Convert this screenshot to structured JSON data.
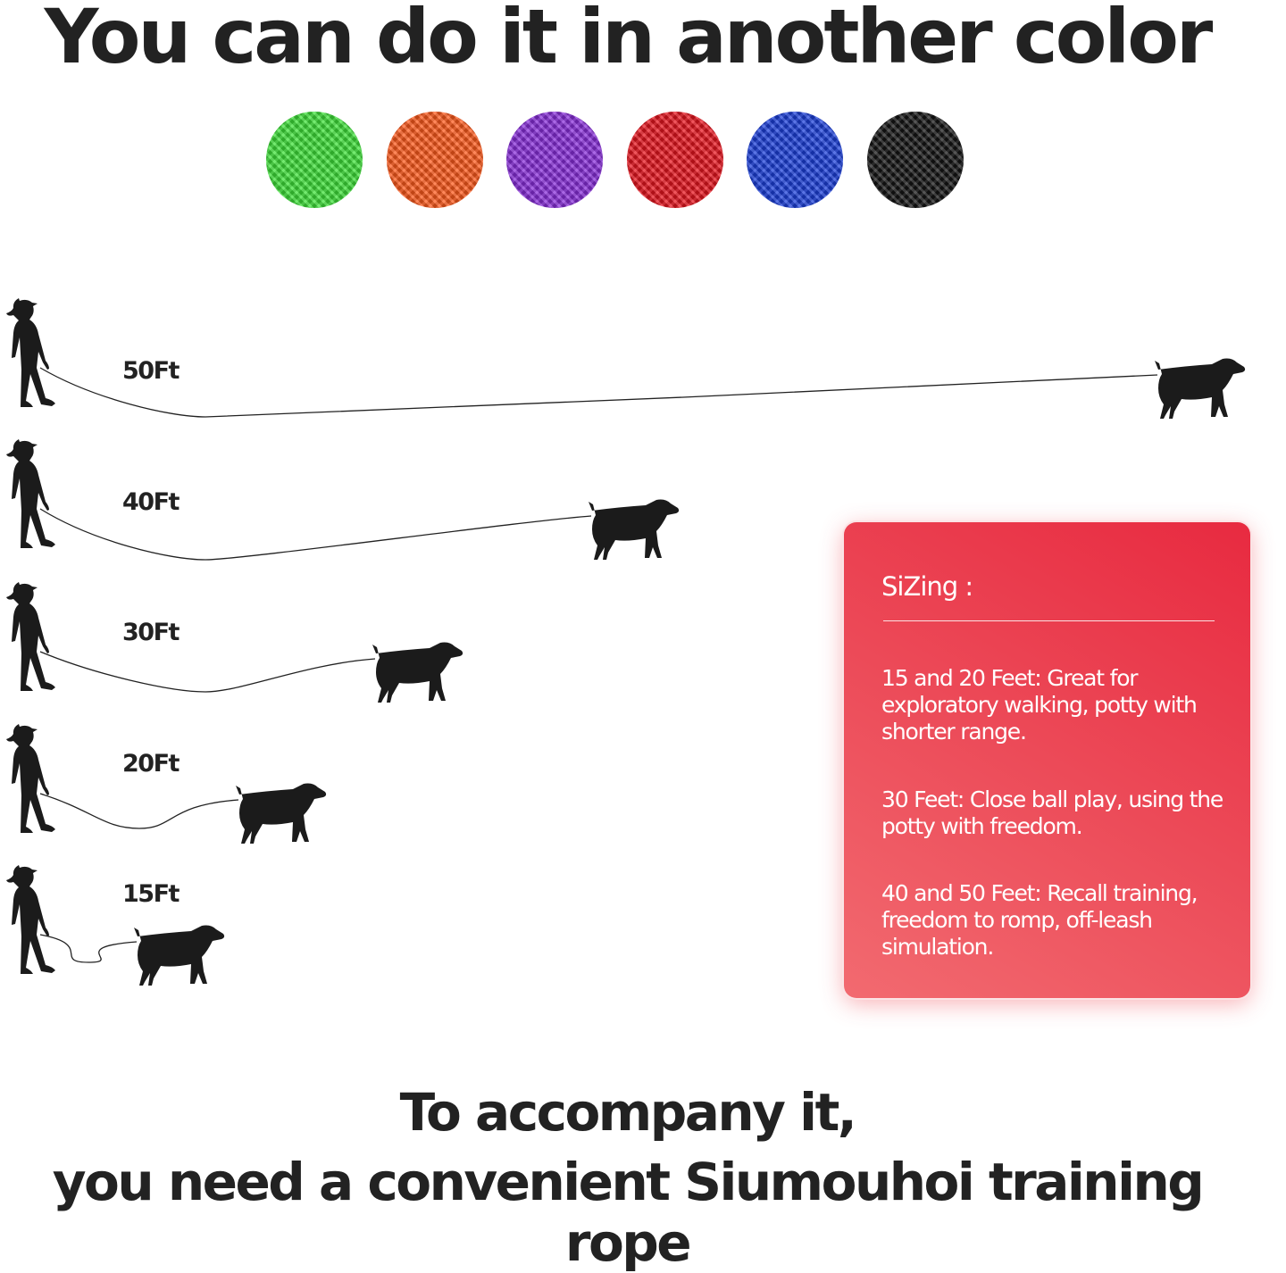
{
  "title": "You can do it in another color",
  "colors": [
    {
      "name": "green",
      "hex": "#3fe23a"
    },
    {
      "name": "orange",
      "hex": "#ff5b1c"
    },
    {
      "name": "purple",
      "hex": "#8a2fdc"
    },
    {
      "name": "red",
      "hex": "#e9161f"
    },
    {
      "name": "blue",
      "hex": "#1d40dc"
    },
    {
      "name": "black",
      "hex": "#151515"
    }
  ],
  "lengths": [
    {
      "label": "50Ft",
      "feet": 50
    },
    {
      "label": "40Ft",
      "feet": 40
    },
    {
      "label": "30Ft",
      "feet": 30
    },
    {
      "label": "20Ft",
      "feet": 20
    },
    {
      "label": "15Ft",
      "feet": 15
    }
  ],
  "sizing": {
    "title": "SiZing :",
    "items": [
      "15 and 20 Feet: Great for exploratory walking, potty with shorter range.",
      "30 Feet: Close ball play, using the potty with freedom.",
      "40 and 50 Feet: Recall training, freedom to romp, off-leash simulation."
    ]
  },
  "footer": {
    "line1": "To accompany it,",
    "line2": "you need a convenient Siumouhoi training rope"
  }
}
